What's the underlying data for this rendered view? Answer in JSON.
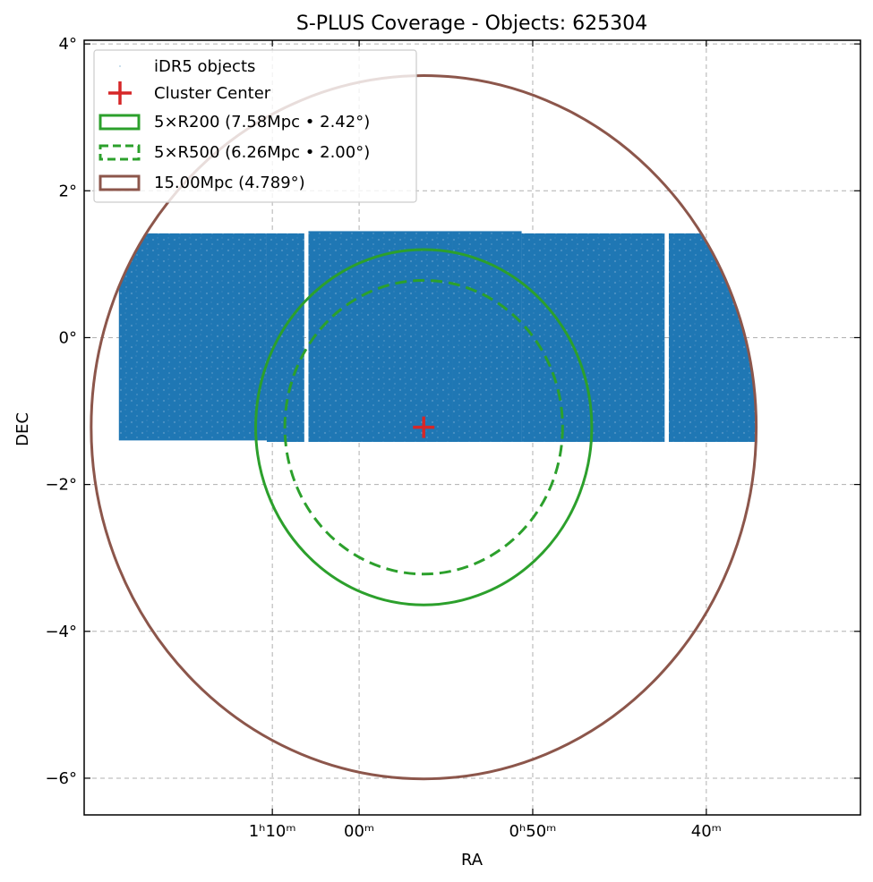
{
  "chart_data": {
    "type": "scatter",
    "title": "S-PLUS Coverage - Objects: 625304",
    "xlabel": "RA",
    "ylabel": "DEC",
    "xlim_deg": [
      18.96,
      7.78
    ],
    "ylim_deg": [
      -6.5,
      4.05
    ],
    "x_ticks": [
      {
        "value": 16.25,
        "label": "1ʰ10ᵐ"
      },
      {
        "value": 15.0,
        "label": "00ᵐ"
      },
      {
        "value": 12.5,
        "label": "0ʰ50ᵐ"
      },
      {
        "value": 10.0,
        "label": "40ᵐ"
      }
    ],
    "y_ticks": [
      {
        "value": 4,
        "label": "4°"
      },
      {
        "value": 2,
        "label": "2°"
      },
      {
        "value": 0,
        "label": "0°"
      },
      {
        "value": -2,
        "label": "−2°"
      },
      {
        "value": -4,
        "label": "−4°"
      },
      {
        "value": -6,
        "label": "−6°"
      }
    ],
    "grid": true,
    "legend_position": "top-left",
    "cluster_center": {
      "ra": 14.07,
      "dec": -1.22
    },
    "series": [
      {
        "name": "iDR5 objects",
        "kind": "points",
        "color": "#1f77b4",
        "coverage_fields": [
          {
            "ra_min": 16.33,
            "ra_max": 18.46,
            "dec_min": -1.4,
            "dec_max": 1.42
          },
          {
            "ra_min": 15.79,
            "ra_max": 16.33,
            "dec_min": -1.42,
            "dec_max": 1.42
          },
          {
            "ra_min": 13.66,
            "ra_max": 15.73,
            "dec_min": -1.42,
            "dec_max": 1.45
          },
          {
            "ra_min": 12.66,
            "ra_max": 13.66,
            "dec_min": -1.42,
            "dec_max": 1.45
          },
          {
            "ra_min": 10.6,
            "ra_max": 12.66,
            "dec_min": -1.42,
            "dec_max": 1.42
          },
          {
            "ra_min": 8.79,
            "ra_max": 10.54,
            "dec_min": -1.42,
            "dec_max": 1.42
          }
        ]
      },
      {
        "name": "Cluster Center",
        "kind": "marker",
        "color": "#d62728"
      },
      {
        "name": "5×R200 (7.58Mpc • 2.42°)",
        "kind": "circle",
        "radius_deg": 2.42,
        "color": "#2ca02c",
        "linestyle": "solid"
      },
      {
        "name": "5×R500 (6.26Mpc • 2.00°)",
        "kind": "circle",
        "radius_deg": 2.0,
        "color": "#2ca02c",
        "linestyle": "dashed"
      },
      {
        "name": "15.00Mpc (4.789°)",
        "kind": "circle",
        "radius_deg": 4.789,
        "color": "#8c564b",
        "linestyle": "solid"
      }
    ]
  }
}
